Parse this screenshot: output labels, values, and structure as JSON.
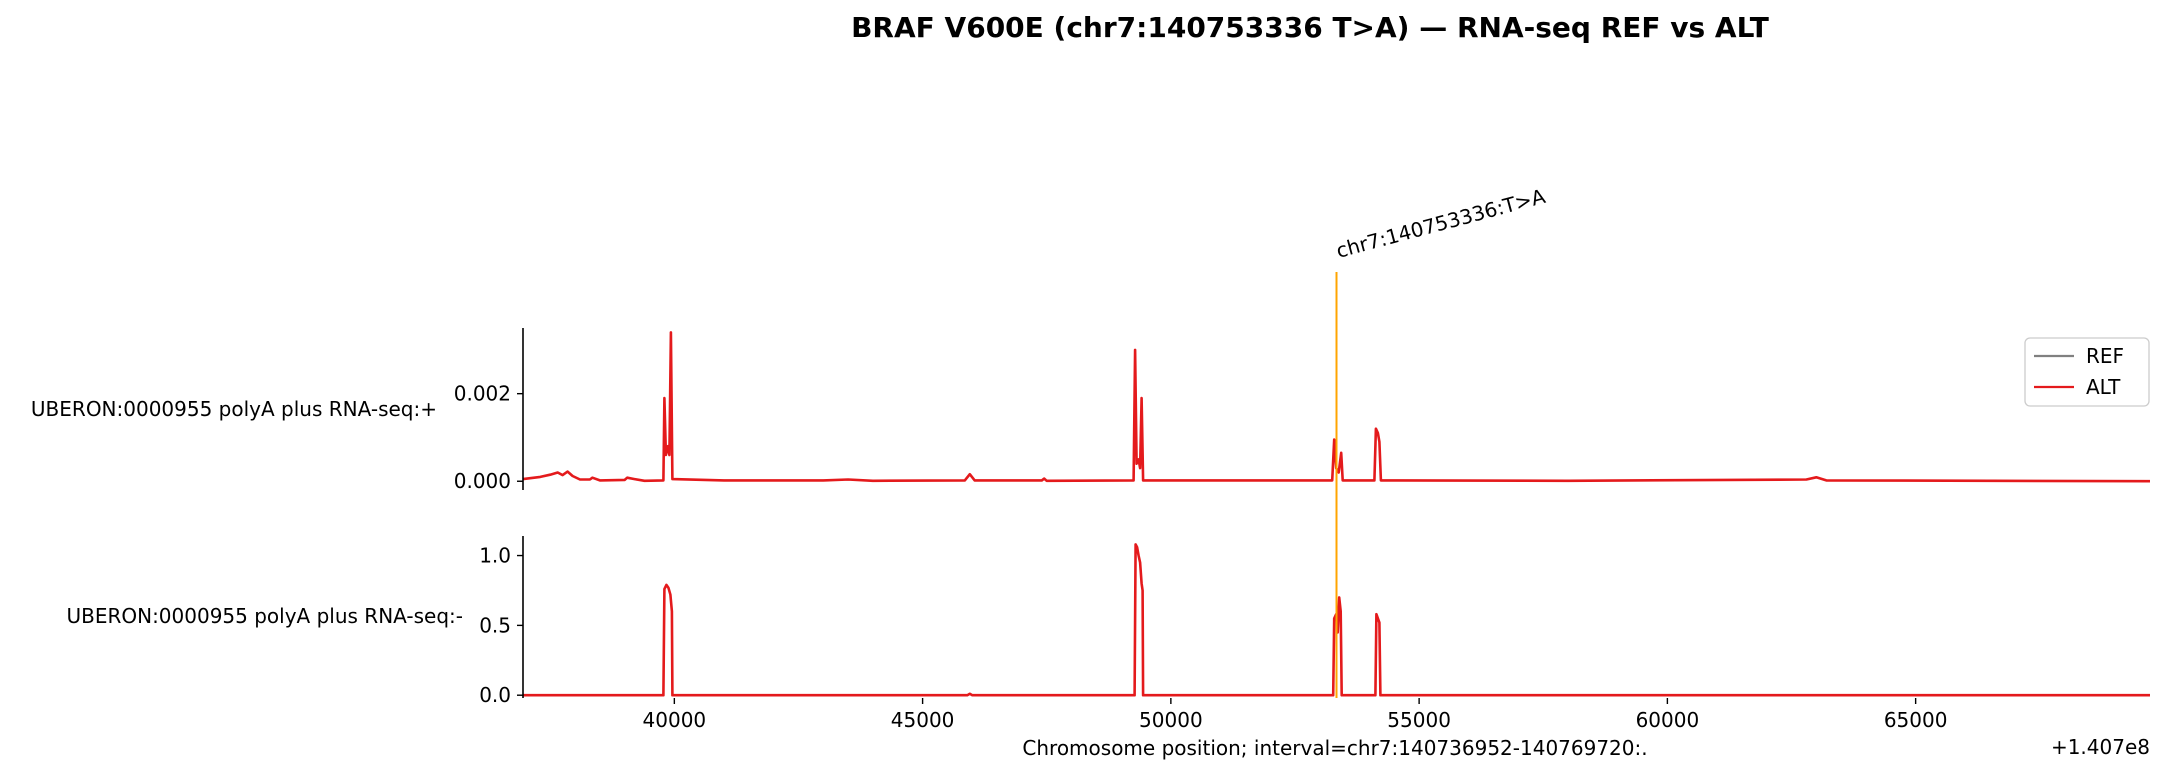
{
  "chart_data": {
    "type": "line",
    "title": "BRAF V600E (chr7:140753336 T>A) — RNA-seq REF vs ALT",
    "xlabel": "Chromosome position; interval=chr7:140736952-140769720:.",
    "x_offset_label": "+1.407e8",
    "xlim": [
      36952,
      69720
    ],
    "xticks": [
      40000,
      45000,
      50000,
      55000,
      60000,
      65000
    ],
    "xtick_labels": [
      "40000",
      "45000",
      "50000",
      "55000",
      "60000",
      "65000"
    ],
    "variant": {
      "position": 53336,
      "label": "chr7:140753336:T>A",
      "color": "#ffa500"
    },
    "legend": {
      "placement": "right",
      "entries": [
        {
          "label": "REF",
          "color": "#808080"
        },
        {
          "label": "ALT",
          "color": "#e41a1c"
        }
      ]
    },
    "panels": [
      {
        "track": "UBERON:0000955 polyA plus RNA-seq:+",
        "ylim": [
          -0.0002,
          0.0035
        ],
        "yticks": [
          0.0,
          0.002
        ],
        "ytick_labels": [
          "0.000",
          "0.002"
        ],
        "series": [
          {
            "name": "ALT",
            "color": "#e41a1c",
            "points": [
              [
                36952,
                5e-05
              ],
              [
                37300,
                0.0001
              ],
              [
                37500,
                0.00015
              ],
              [
                37650,
                0.0002
              ],
              [
                37750,
                0.00014
              ],
              [
                37850,
                0.00022
              ],
              [
                37950,
                0.00012
              ],
              [
                38100,
                4e-05
              ],
              [
                38300,
                4e-05
              ],
              [
                38350,
                8e-05
              ],
              [
                38500,
                2e-05
              ],
              [
                39000,
                3e-05
              ],
              [
                39050,
                8e-05
              ],
              [
                39200,
                5e-05
              ],
              [
                39400,
                1e-05
              ],
              [
                39780,
                2e-05
              ],
              [
                39800,
                0.0019
              ],
              [
                39830,
                0.0006
              ],
              [
                39870,
                0.0008
              ],
              [
                39900,
                0.0006
              ],
              [
                39930,
                0.0034
              ],
              [
                39960,
                5e-05
              ],
              [
                41000,
                2e-05
              ],
              [
                43000,
                2e-05
              ],
              [
                43500,
                4e-05
              ],
              [
                44000,
                1e-05
              ],
              [
                45850,
                2e-05
              ],
              [
                45950,
                0.00016
              ],
              [
                46050,
                2e-05
              ],
              [
                47400,
                2e-05
              ],
              [
                47450,
                6e-05
              ],
              [
                47500,
                1e-05
              ],
              [
                49250,
                2e-05
              ],
              [
                49280,
                0.003
              ],
              [
                49310,
                0.0004
              ],
              [
                49350,
                0.0005
              ],
              [
                49380,
                0.0003
              ],
              [
                49410,
                0.0019
              ],
              [
                49440,
                2e-05
              ],
              [
                53250,
                2e-05
              ],
              [
                53290,
                0.00095
              ],
              [
                53330,
                0.0003
              ],
              [
                53380,
                0.0002
              ],
              [
                53430,
                0.00065
              ],
              [
                53460,
                2e-05
              ],
              [
                54100,
                2e-05
              ],
              [
                54130,
                0.0012
              ],
              [
                54170,
                0.0011
              ],
              [
                54200,
                0.0009
              ],
              [
                54230,
                2e-05
              ],
              [
                58000,
                1e-05
              ],
              [
                62800,
                4e-05
              ],
              [
                63000,
                9e-05
              ],
              [
                63200,
                2e-05
              ],
              [
                69720,
                0.0
              ]
            ]
          }
        ]
      },
      {
        "track": "UBERON:0000955 polyA plus RNA-seq:-",
        "ylim": [
          -0.02,
          1.14
        ],
        "yticks": [
          0.0,
          0.5,
          1.0
        ],
        "ytick_labels": [
          "0.0",
          "0.5",
          "1.0"
        ],
        "series": [
          {
            "name": "ALT",
            "color": "#e41a1c",
            "points": [
              [
                36952,
                0.0
              ],
              [
                39780,
                0.0
              ],
              [
                39800,
                0.76
              ],
              [
                39840,
                0.79
              ],
              [
                39880,
                0.77
              ],
              [
                39920,
                0.72
              ],
              [
                39950,
                0.6
              ],
              [
                39960,
                0.0
              ],
              [
                45900,
                0.0
              ],
              [
                45950,
                0.01
              ],
              [
                46000,
                0.0
              ],
              [
                49270,
                0.0
              ],
              [
                49290,
                1.08
              ],
              [
                49320,
                1.06
              ],
              [
                49350,
                1.0
              ],
              [
                49380,
                0.95
              ],
              [
                49410,
                0.8
              ],
              [
                49430,
                0.75
              ],
              [
                49440,
                0.0
              ],
              [
                53270,
                0.0
              ],
              [
                53290,
                0.55
              ],
              [
                53330,
                0.58
              ],
              [
                53360,
                0.45
              ],
              [
                53390,
                0.7
              ],
              [
                53420,
                0.6
              ],
              [
                53440,
                0.0
              ],
              [
                54120,
                0.0
              ],
              [
                54140,
                0.58
              ],
              [
                54170,
                0.55
              ],
              [
                54200,
                0.52
              ],
              [
                54220,
                0.0
              ],
              [
                69720,
                0.0
              ]
            ]
          }
        ]
      }
    ]
  }
}
